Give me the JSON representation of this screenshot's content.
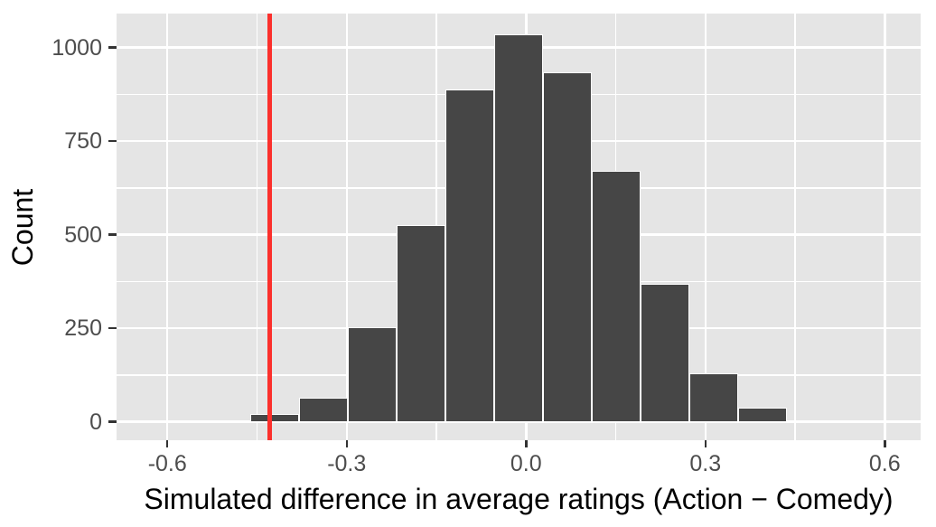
{
  "chart_data": {
    "type": "bar",
    "variant": "histogram",
    "title": "",
    "xlabel": "Simulated difference in average ratings (Action − Comedy)",
    "ylabel": "Count",
    "x_domain": [
      -0.685,
      0.66
    ],
    "y_domain": [
      -49,
      1091
    ],
    "x_ticks": [
      {
        "v": -0.6,
        "label": "-0.6"
      },
      {
        "v": -0.3,
        "label": "-0.3"
      },
      {
        "v": 0.0,
        "label": "0.0"
      },
      {
        "v": 0.3,
        "label": "0.3"
      },
      {
        "v": 0.6,
        "label": "0.6"
      }
    ],
    "y_ticks": [
      {
        "v": 0,
        "label": "0"
      },
      {
        "v": 250,
        "label": "250"
      },
      {
        "v": 500,
        "label": "500"
      },
      {
        "v": 750,
        "label": "750"
      },
      {
        "v": 1000,
        "label": "1000"
      }
    ],
    "x_minor": [
      -0.45,
      -0.15,
      0.15,
      0.45
    ],
    "y_minor": [
      125,
      375,
      625,
      875
    ],
    "bin_edges": [
      -0.7054,
      -0.6238,
      -0.5423,
      -0.4607,
      -0.3792,
      -0.2976,
      -0.216,
      -0.1345,
      -0.0529,
      0.0287,
      0.1102,
      0.1918,
      0.2733,
      0.3549,
      0.4365,
      0.518
    ],
    "counts": [
      2,
      1,
      5,
      22,
      65,
      253,
      527,
      889,
      1035,
      934,
      671,
      368,
      129,
      38,
      5
    ],
    "vline_x": -0.429,
    "legend": null,
    "grid": "major+minor",
    "colors": {
      "figure_background": "#ffffff",
      "panel_background": "#e5e5e5",
      "gridline": "#ffffff",
      "bar_fill": "#464646",
      "bar_outline": "#ffffff",
      "vline": "#fb302c",
      "tick_mark": "#333333",
      "tick_label": "#4d4d4d",
      "axis_title": "#000000"
    }
  }
}
